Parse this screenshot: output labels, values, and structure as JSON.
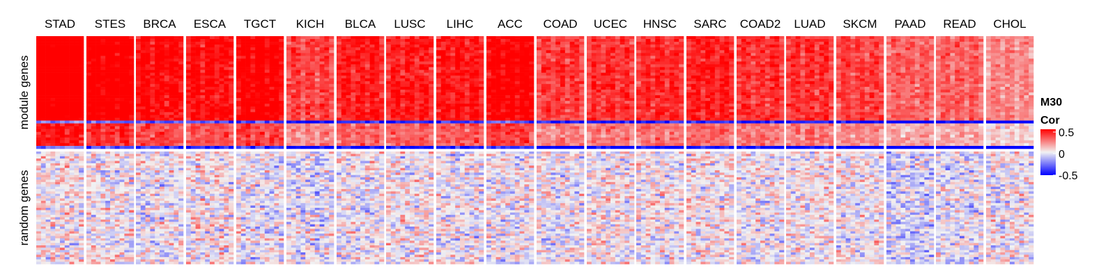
{
  "chart_data": {
    "type": "heatmap",
    "title": "",
    "columns": [
      "STAD",
      "STES",
      "BRCA",
      "ESCA",
      "TGCT",
      "KICH",
      "BLCA",
      "LUSC",
      "LIHC",
      "ACC",
      "COAD",
      "UCEC",
      "HNSC",
      "SARC",
      "COAD2",
      "LUAD",
      "SKCM",
      "PAAD",
      "READ",
      "CHOL"
    ],
    "row_groups": [
      {
        "label": "module genes",
        "mean_cor": [
          0.62,
          0.56,
          0.5,
          0.48,
          0.52,
          0.36,
          0.44,
          0.44,
          0.46,
          0.52,
          0.38,
          0.4,
          0.42,
          0.44,
          0.4,
          0.4,
          0.36,
          0.3,
          0.3,
          0.22
        ]
      },
      {
        "label": "random genes",
        "mean_cor": [
          0.02,
          0.02,
          0.0,
          0.03,
          -0.02,
          -0.03,
          0.0,
          0.02,
          0.0,
          0.0,
          0.0,
          0.02,
          0.02,
          0.03,
          0.0,
          0.02,
          0.02,
          -0.05,
          -0.02,
          0.0
        ]
      }
    ],
    "legend": {
      "title_line1": "M30",
      "title_line2": "Cor",
      "ticks": [
        "0.5",
        "0",
        "-0.5"
      ],
      "range": [
        -0.5,
        0.5
      ],
      "colors": {
        "high": "#ff0000",
        "mid": "#f2f2f2",
        "low": "#0000ff"
      }
    }
  }
}
